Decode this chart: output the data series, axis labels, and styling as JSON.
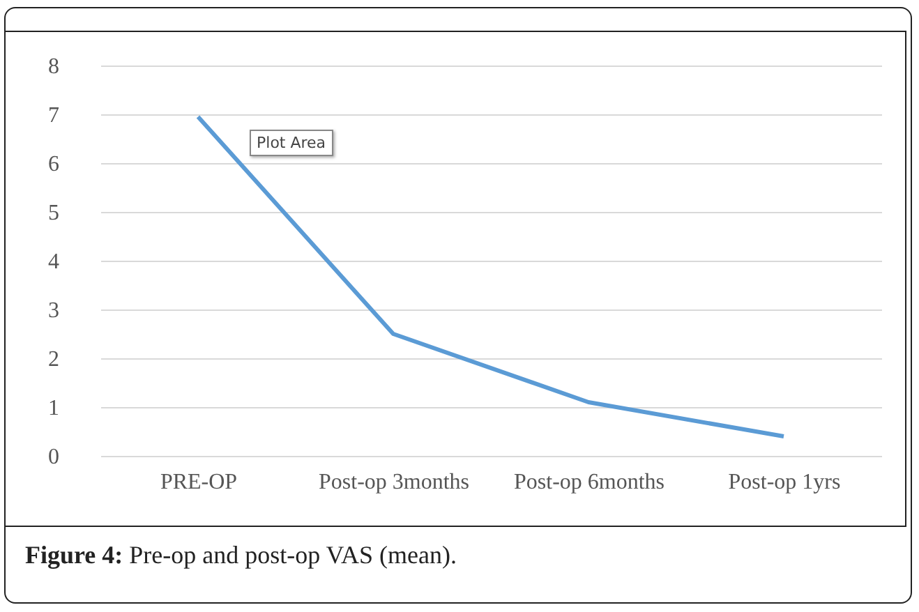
{
  "chart_data": {
    "type": "line",
    "categories": [
      "PRE-OP",
      "Post-op 3months",
      "Post-op 6months",
      "Post-op 1yrs"
    ],
    "series": [
      {
        "color": "#5b9bd5",
        "values": [
          6.95,
          2.5,
          1.1,
          0.4
        ]
      }
    ],
    "ylim": [
      0,
      8
    ],
    "yticks": [
      0,
      1,
      2,
      3,
      4,
      5,
      6,
      7,
      8
    ],
    "grid": "y",
    "legend": false,
    "marker": "none",
    "line_style": "solid",
    "annotations": [
      "Plot Area",
      "Figure 4: Pre-op and post-op VAS (mean)."
    ]
  }
}
